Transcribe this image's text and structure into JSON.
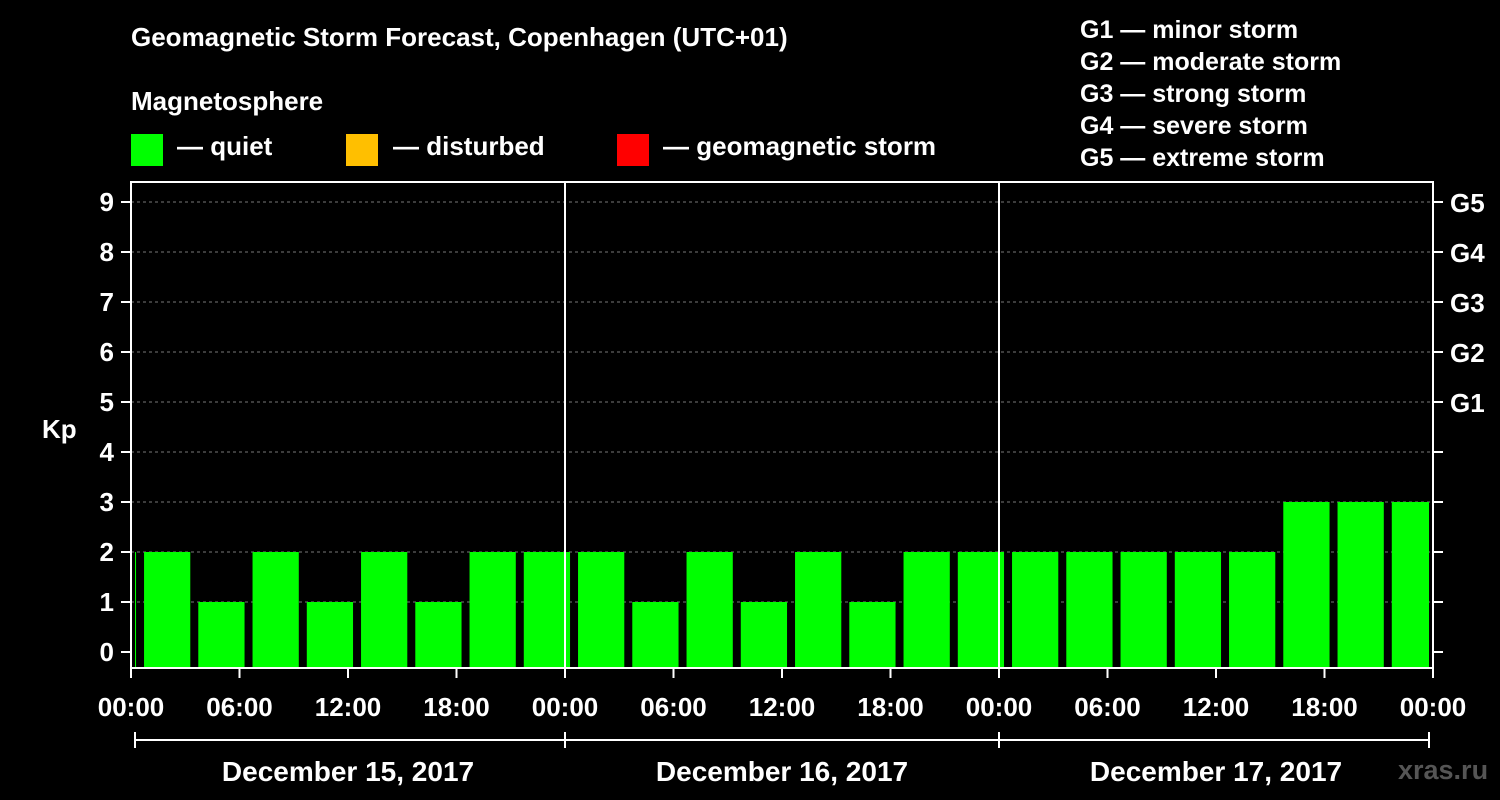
{
  "title": "Geomagnetic Storm Forecast, Copenhagen (UTC+01)",
  "magnetosphere_label": "Magnetosphere",
  "legend": [
    {
      "label": "— quiet",
      "color": "#00ff00"
    },
    {
      "label": "— disturbed",
      "color": "#ffbf00"
    },
    {
      "label": "— geomagnetic storm",
      "color": "#ff0000"
    }
  ],
  "g_scale_legend": [
    "G1 — minor storm",
    "G2 — moderate storm",
    "G3 — strong storm",
    "G4 — severe storm",
    "G5 — extreme storm"
  ],
  "watermark": "xras.ru",
  "chart_data": {
    "type": "bar",
    "ylabel": "Kp",
    "ylim": [
      0,
      9
    ],
    "yticks": [
      "0",
      "1",
      "2",
      "3",
      "4",
      "5",
      "6",
      "7",
      "8",
      "9"
    ],
    "right_axis_labels": [
      {
        "kp": 5,
        "label": "G1"
      },
      {
        "kp": 6,
        "label": "G2"
      },
      {
        "kp": 7,
        "label": "G3"
      },
      {
        "kp": 8,
        "label": "G4"
      },
      {
        "kp": 9,
        "label": "G5"
      }
    ],
    "x_tick_labels": [
      "00:00",
      "06:00",
      "12:00",
      "18:00",
      "00:00",
      "06:00",
      "12:00",
      "18:00",
      "00:00",
      "06:00",
      "12:00",
      "18:00",
      "00:00"
    ],
    "days": [
      "December 15, 2017",
      "December 16, 2017",
      "December 17, 2017"
    ],
    "bin_hours": 3,
    "first_bin_hours": 0.5,
    "grid": true,
    "values": [
      2,
      2,
      1,
      2,
      1,
      2,
      1,
      2,
      2,
      2,
      1,
      2,
      1,
      2,
      1,
      2,
      2,
      2,
      2,
      2,
      2,
      2,
      3,
      3,
      3
    ],
    "colors": {
      "quiet": "#00ff00",
      "disturbed": "#ffbf00",
      "storm": "#ff0000"
    }
  }
}
